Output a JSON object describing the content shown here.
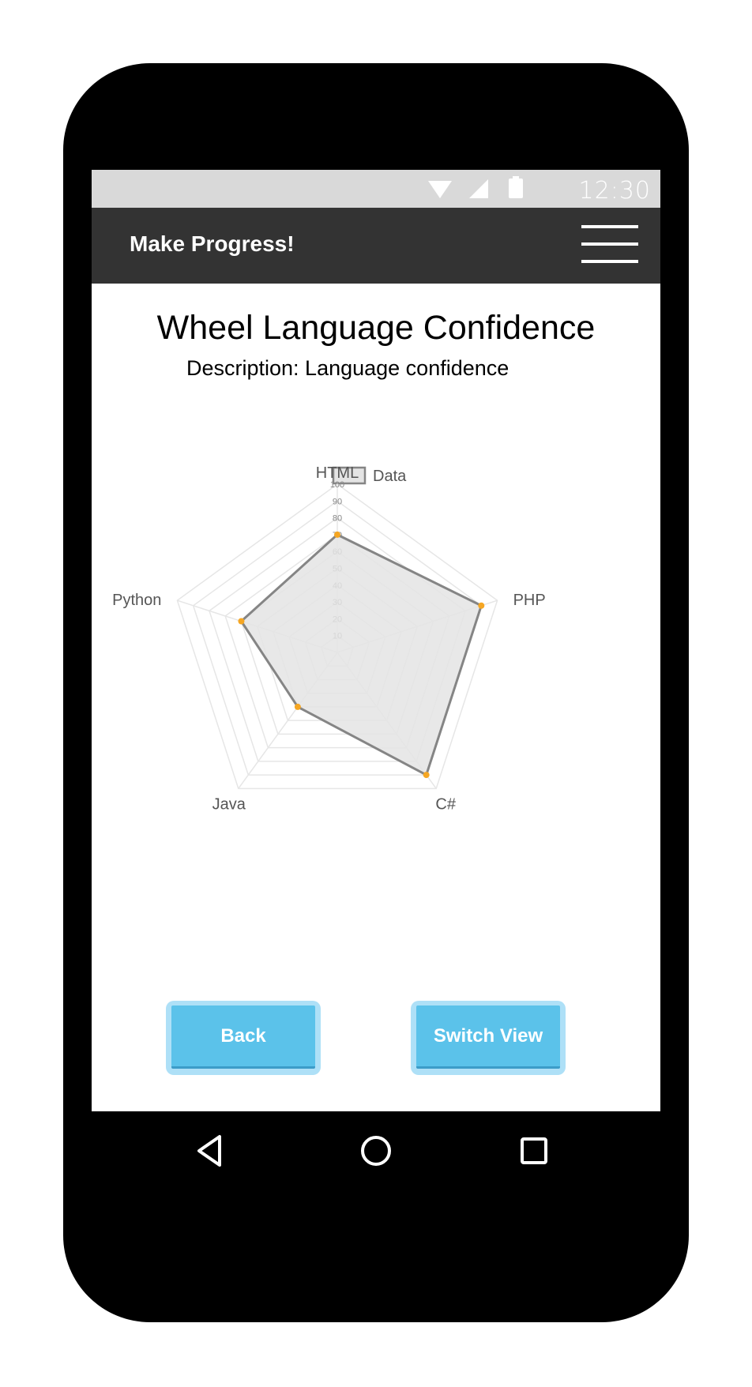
{
  "status_bar": {
    "time": "12:30",
    "icons": [
      "wifi-icon",
      "signal-icon",
      "battery-icon"
    ]
  },
  "app_bar": {
    "title": "Make Progress!",
    "menu_icon": "hamburger-menu-icon"
  },
  "page": {
    "title": "Wheel Language Confidence",
    "description": "Description: Language confidence"
  },
  "chart_data": {
    "type": "radar",
    "categories": [
      "HTML",
      "PHP",
      "C#",
      "Java",
      "Python"
    ],
    "series": [
      {
        "name": "Data",
        "values": [
          70,
          90,
          90,
          40,
          60
        ]
      }
    ],
    "r_ticks": [
      10,
      20,
      30,
      40,
      50,
      60,
      70,
      80,
      90,
      100
    ],
    "r_range": [
      0,
      100
    ],
    "legend": "top",
    "colors": {
      "fill": "#e4e4e4",
      "stroke": "#858585",
      "point": "#f5a623",
      "grid": "#e6e6e6"
    }
  },
  "buttons": {
    "back": "Back",
    "switch_view": "Switch View"
  },
  "nav_bar": {
    "icons": [
      "back-triangle-icon",
      "home-circle-icon",
      "recents-square-icon"
    ]
  }
}
